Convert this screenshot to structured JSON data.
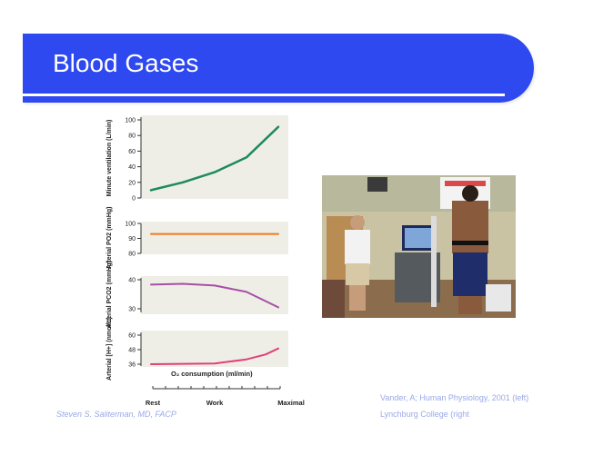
{
  "slide": {
    "title": "Blood Gases",
    "author": "Steven S. Saliterman, MD, FACP",
    "credit_line1": "Vander, A; Human Physiology, 2001 (left)",
    "credit_line2": "Lynchburg College (right"
  },
  "colors": {
    "banner": "#2e49f0",
    "panel_bg": "#efeee6",
    "ventilation": "#1f8a5e",
    "po2": "#f07a1e",
    "pco2": "#a64fa6",
    "h_ion": "#e0407a"
  },
  "figure": {
    "xlabel": "O₂ consumption (ml/min)",
    "x_categories": [
      "Rest",
      "Work",
      "Maximal"
    ]
  },
  "chart_data": [
    {
      "type": "line",
      "ylabel": "Minute ventilation (L/min)",
      "yticks": [
        "100",
        "80",
        "60",
        "40",
        "20",
        "0"
      ],
      "ylim": [
        0,
        100
      ],
      "series": [
        {
          "x": [
            0,
            0.25,
            0.5,
            0.75,
            1.0
          ],
          "y": [
            10,
            20,
            33,
            52,
            91
          ]
        }
      ]
    },
    {
      "type": "line",
      "ylabel": "Arterial PO2 (mmHg)",
      "yticks": [
        "100",
        "90",
        "80"
      ],
      "ylim": [
        80,
        100
      ],
      "series": [
        {
          "x": [
            0,
            1.0
          ],
          "y": [
            93,
            93
          ]
        }
      ]
    },
    {
      "type": "line",
      "ylabel": "Arterial PCO2 (mmHg)",
      "yticks": [
        "40",
        "30"
      ],
      "ylim": [
        30,
        40
      ],
      "series": [
        {
          "x": [
            0,
            0.25,
            0.5,
            0.75,
            1.0
          ],
          "y": [
            38.3,
            38.6,
            38.0,
            35.8,
            30.5
          ]
        }
      ]
    },
    {
      "type": "line",
      "ylabel": "Arterial [H+] (nmol/L)",
      "yticks": [
        "60",
        "48",
        "36"
      ],
      "ylim": [
        36,
        60
      ],
      "series": [
        {
          "x": [
            0,
            0.5,
            0.75,
            0.9,
            1.0
          ],
          "y": [
            36,
            36.5,
            40,
            44,
            49
          ]
        }
      ]
    }
  ]
}
